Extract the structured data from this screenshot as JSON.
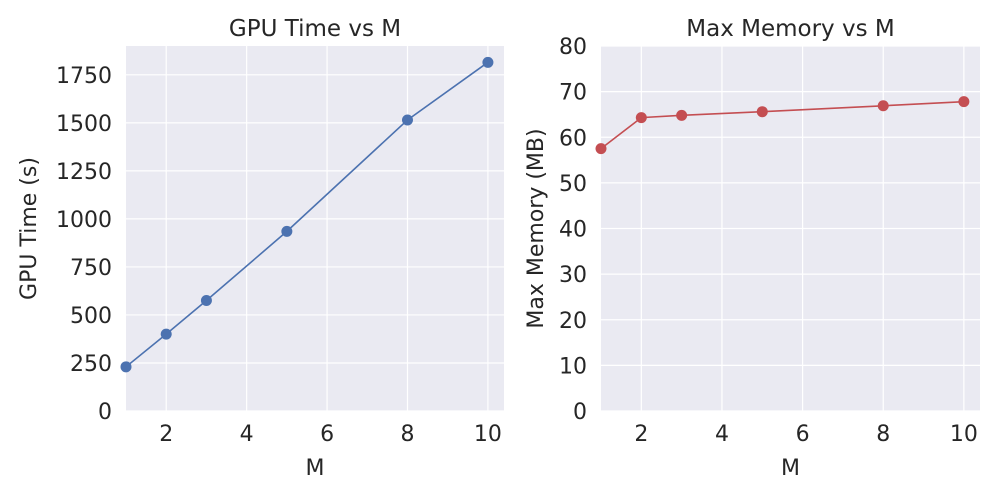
{
  "chart_data": [
    {
      "type": "line",
      "title": "GPU Time vs M",
      "xlabel": "M",
      "ylabel": "GPU Time (s)",
      "xlim": [
        1,
        10.4
      ],
      "ylim": [
        0,
        1900
      ],
      "xticks": [
        2,
        4,
        6,
        8,
        10
      ],
      "yticks": [
        0,
        250,
        500,
        750,
        1000,
        1250,
        1500,
        1750
      ],
      "grid": true,
      "color": "#4c72b0",
      "series": [
        {
          "x": [
            1,
            2,
            3,
            5,
            8,
            10
          ],
          "y": [
            230,
            400,
            575,
            935,
            1515,
            1815
          ]
        }
      ]
    },
    {
      "type": "line",
      "title": "Max Memory vs M",
      "xlabel": "M",
      "ylabel": "Max Memory (MB)",
      "xlim": [
        1,
        10.4
      ],
      "ylim": [
        0,
        80
      ],
      "xticks": [
        2,
        4,
        6,
        8,
        10
      ],
      "yticks": [
        0,
        10,
        20,
        30,
        40,
        50,
        60,
        70,
        80
      ],
      "grid": true,
      "color": "#c44e52",
      "series": [
        {
          "x": [
            1,
            2,
            3,
            5,
            8,
            10
          ],
          "y": [
            57.5,
            64.3,
            64.8,
            65.6,
            66.9,
            67.8
          ]
        }
      ]
    }
  ]
}
